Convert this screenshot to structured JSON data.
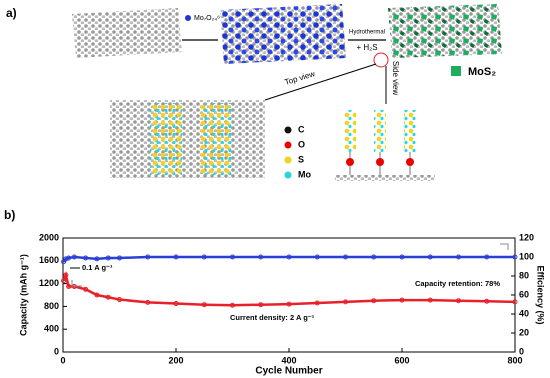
{
  "panel_a": {
    "label": "a)",
    "precursor": "Mo₇O₂₄⁶⁻",
    "step_top": "Hydrothermal",
    "step_bottom": "+ H₂S",
    "product": "MoS₂",
    "top_view": "Top view",
    "side_view": "Side view",
    "legend": [
      "C",
      "O",
      "S",
      "Mo"
    ]
  },
  "chart_data": {
    "type": "line",
    "label": "b)",
    "x_label": "Cycle Number",
    "y_label": "Capacity (mAh g⁻¹)",
    "y2_label": "Efficiency (%)",
    "annotations": [
      "0.1 A g⁻¹",
      "Capacity retention: 78%",
      "Current density: 2 A g⁻¹"
    ],
    "x": [
      1,
      5,
      10,
      20,
      40,
      60,
      80,
      100,
      150,
      200,
      250,
      300,
      350,
      400,
      450,
      500,
      550,
      600,
      650,
      700,
      750,
      800
    ],
    "xlim": [
      0,
      800
    ],
    "xticks": [
      0,
      200,
      400,
      600,
      800
    ],
    "ylim": [
      0,
      2000
    ],
    "yticks": [
      0,
      400,
      800,
      1200,
      1600,
      2000
    ],
    "y2lim": [
      0,
      120
    ],
    "y2ticks": [
      0,
      20,
      40,
      60,
      80,
      100,
      120
    ],
    "series": [
      {
        "color": "#e8202a",
        "values": [
          1250,
          1350,
          1150,
          1150,
          1100,
          1000,
          960,
          920,
          870,
          850,
          830,
          820,
          830,
          840,
          860,
          880,
          900,
          910,
          910,
          900,
          890,
          880
        ]
      },
      {
        "color": "#2a3fd6",
        "axis": "y2",
        "values": [
          95,
          98,
          99,
          100,
          99,
          98,
          99,
          99,
          100,
          100,
          100,
          100,
          100,
          100,
          100,
          100,
          100,
          100,
          100,
          100,
          100,
          100
        ]
      }
    ]
  }
}
